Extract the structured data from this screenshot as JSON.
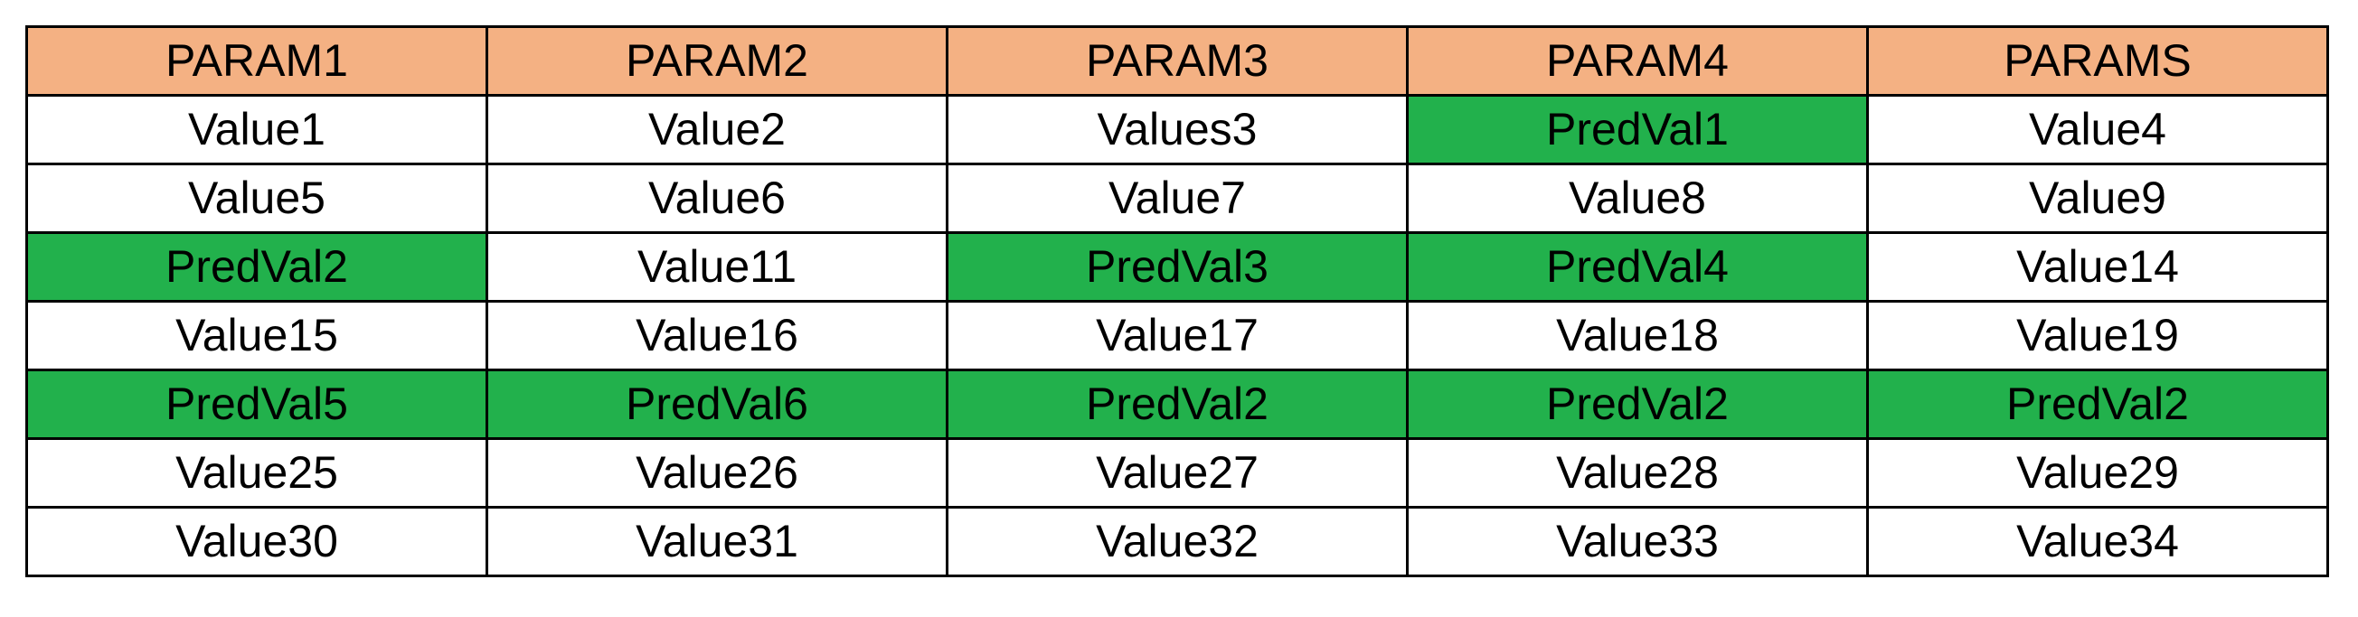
{
  "colors": {
    "header_bg": "#f4b183",
    "highlight_bg": "#22b14c",
    "cell_bg": "#ffffff",
    "border": "#000000"
  },
  "table": {
    "headers": [
      "PARAM1",
      "PARAM2",
      "PARAM3",
      "PARAM4",
      "PARAMS"
    ],
    "rows": [
      [
        {
          "text": "Value1",
          "highlight": false
        },
        {
          "text": "Value2",
          "highlight": false
        },
        {
          "text": "Values3",
          "highlight": false
        },
        {
          "text": "PredVal1",
          "highlight": true
        },
        {
          "text": "Value4",
          "highlight": false
        }
      ],
      [
        {
          "text": "Value5",
          "highlight": false
        },
        {
          "text": "Value6",
          "highlight": false
        },
        {
          "text": "Value7",
          "highlight": false
        },
        {
          "text": "Value8",
          "highlight": false
        },
        {
          "text": "Value9",
          "highlight": false
        }
      ],
      [
        {
          "text": "PredVal2",
          "highlight": true
        },
        {
          "text": "Value11",
          "highlight": false
        },
        {
          "text": "PredVal3",
          "highlight": true
        },
        {
          "text": "PredVal4",
          "highlight": true
        },
        {
          "text": "Value14",
          "highlight": false
        }
      ],
      [
        {
          "text": "Value15",
          "highlight": false
        },
        {
          "text": "Value16",
          "highlight": false
        },
        {
          "text": "Value17",
          "highlight": false
        },
        {
          "text": "Value18",
          "highlight": false
        },
        {
          "text": "Value19",
          "highlight": false
        }
      ],
      [
        {
          "text": "PredVal5",
          "highlight": true
        },
        {
          "text": "PredVal6",
          "highlight": true
        },
        {
          "text": "PredVal2",
          "highlight": true
        },
        {
          "text": "PredVal2",
          "highlight": true
        },
        {
          "text": "PredVal2",
          "highlight": true
        }
      ],
      [
        {
          "text": "Value25",
          "highlight": false
        },
        {
          "text": "Value26",
          "highlight": false
        },
        {
          "text": "Value27",
          "highlight": false
        },
        {
          "text": "Value28",
          "highlight": false
        },
        {
          "text": "Value29",
          "highlight": false
        }
      ],
      [
        {
          "text": "Value30",
          "highlight": false
        },
        {
          "text": "Value31",
          "highlight": false
        },
        {
          "text": "Value32",
          "highlight": false
        },
        {
          "text": "Value33",
          "highlight": false
        },
        {
          "text": "Value34",
          "highlight": false
        }
      ]
    ]
  }
}
